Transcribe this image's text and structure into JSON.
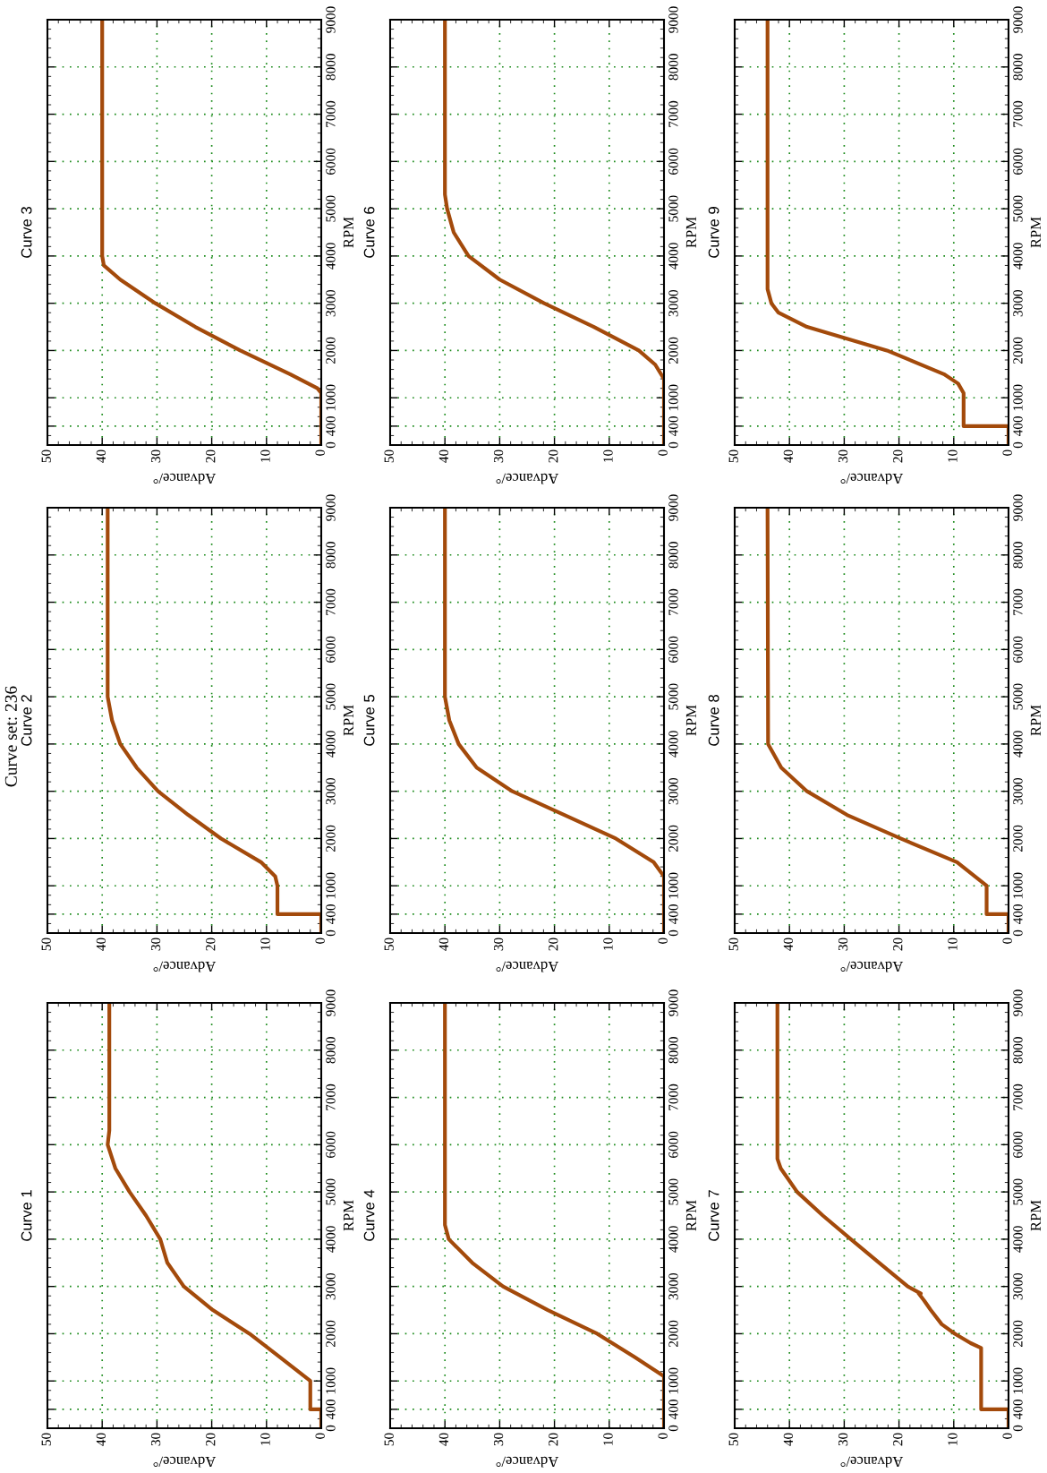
{
  "chart_data": [
    {
      "type": "line",
      "title": "Curve 1",
      "xlabel": "Advance/°",
      "ylabel": "RPM",
      "xlim": [
        50,
        0
      ],
      "ylim": [
        0,
        9000
      ],
      "xticks": [
        0,
        10,
        20,
        30,
        40,
        50
      ],
      "yticks": [
        0,
        400,
        1000,
        2000,
        3000,
        4000,
        5000,
        6000,
        7000,
        8000,
        9000
      ],
      "grid": true,
      "line_style": "solid",
      "color": "#a34a0b",
      "x": [
        0,
        0,
        2,
        2,
        7.5,
        13.1,
        19.8,
        25.1,
        28.1,
        29.4,
        32,
        35,
        37.6,
        39,
        38.7,
        38.7
      ],
      "values": [
        0,
        400,
        400,
        1000,
        1500,
        2000,
        2500,
        3000,
        3500,
        4000,
        4500,
        5000,
        5500,
        6000,
        6300,
        9000
      ]
    },
    {
      "type": "line",
      "title": "Curve 2",
      "xlabel": "Advance/°",
      "ylabel": "RPM",
      "xlim": [
        50,
        0
      ],
      "ylim": [
        0,
        9000
      ],
      "xticks": [
        0,
        10,
        20,
        30,
        40,
        50
      ],
      "yticks": [
        0,
        400,
        1000,
        2000,
        3000,
        4000,
        5000,
        6000,
        7000,
        8000,
        9000
      ],
      "grid": true,
      "line_style": "solid",
      "color": "#a34a0b",
      "annotations": [
        "Curve set: 236"
      ],
      "x": [
        0,
        0,
        8,
        8,
        8.4,
        11,
        18.3,
        24.3,
        29.8,
        33.7,
        36.7,
        38.2,
        39,
        39
      ],
      "values": [
        0,
        400,
        400,
        1000,
        1200,
        1500,
        2000,
        2500,
        3000,
        3500,
        4000,
        4500,
        5000,
        9000
      ]
    },
    {
      "type": "line",
      "title": "Curve 3",
      "xlabel": "Advance/°",
      "ylabel": "RPM",
      "xlim": [
        50,
        0
      ],
      "ylim": [
        0,
        9000
      ],
      "xticks": [
        0,
        10,
        20,
        30,
        40,
        50
      ],
      "yticks": [
        0,
        400,
        1000,
        2000,
        3000,
        4000,
        5000,
        6000,
        7000,
        8000,
        9000
      ],
      "grid": true,
      "line_style": "solid",
      "color": "#a34a0b",
      "x": [
        0,
        0,
        0.7,
        5.7,
        14.8,
        23,
        30.3,
        36.7,
        39.7,
        40,
        40
      ],
      "values": [
        0,
        1100,
        1200,
        1500,
        2000,
        2500,
        3000,
        3500,
        3800,
        4000,
        9000
      ]
    },
    {
      "type": "line",
      "title": "Curve 4",
      "xlabel": "Advance/°",
      "ylabel": "RPM",
      "xlim": [
        50,
        0
      ],
      "ylim": [
        0,
        9000
      ],
      "xticks": [
        0,
        10,
        20,
        30,
        40,
        50
      ],
      "yticks": [
        0,
        400,
        1000,
        2000,
        3000,
        4000,
        5000,
        6000,
        7000,
        8000,
        9000
      ],
      "grid": true,
      "line_style": "solid",
      "color": "#a34a0b",
      "x": [
        0,
        0,
        5.3,
        12.2,
        21.2,
        29.4,
        35,
        39.3,
        40,
        40
      ],
      "values": [
        0,
        1100,
        1500,
        2000,
        2500,
        3000,
        3500,
        4000,
        4300,
        9000
      ]
    },
    {
      "type": "line",
      "title": "Curve 5",
      "xlabel": "Advance/°",
      "ylabel": "RPM",
      "xlim": [
        50,
        0
      ],
      "ylim": [
        0,
        9000
      ],
      "xticks": [
        0,
        10,
        20,
        30,
        40,
        50
      ],
      "yticks": [
        0,
        400,
        1000,
        2000,
        3000,
        4000,
        5000,
        6000,
        7000,
        8000,
        9000
      ],
      "grid": true,
      "line_style": "solid",
      "color": "#a34a0b",
      "x": [
        0,
        0,
        1.9,
        8.8,
        18.2,
        27.7,
        34.2,
        37.5,
        39.2,
        40,
        40
      ],
      "values": [
        0,
        1200,
        1500,
        2000,
        2500,
        3000,
        3500,
        4000,
        4500,
        5000,
        9000
      ]
    },
    {
      "type": "line",
      "title": "Curve 6",
      "xlabel": "Advance/°",
      "ylabel": "RPM",
      "xlim": [
        50,
        0
      ],
      "ylim": [
        0,
        9000
      ],
      "xticks": [
        0,
        10,
        20,
        30,
        40,
        50
      ],
      "yticks": [
        0,
        400,
        1000,
        2000,
        3000,
        4000,
        5000,
        6000,
        7000,
        8000,
        9000
      ],
      "grid": true,
      "line_style": "solid",
      "color": "#a34a0b",
      "x": [
        0,
        0,
        1.6,
        4.6,
        12.8,
        21.9,
        30,
        35.7,
        38.4,
        39.6,
        40,
        40
      ],
      "values": [
        0,
        1400,
        1700,
        2000,
        2500,
        3000,
        3500,
        4000,
        4500,
        5000,
        5300,
        9000
      ]
    },
    {
      "type": "line",
      "title": "Curve 7",
      "xlabel": "Advance/°",
      "ylabel": "RPM",
      "xlim": [
        50,
        0
      ],
      "ylim": [
        0,
        9000
      ],
      "xticks": [
        0,
        10,
        20,
        30,
        40,
        50
      ],
      "yticks": [
        0,
        400,
        1000,
        2000,
        3000,
        4000,
        5000,
        6000,
        7000,
        8000,
        9000
      ],
      "grid": true,
      "line_style": "solid",
      "color": "#a34a0b",
      "x": [
        0,
        0,
        5,
        5,
        6.9,
        9.8,
        12.2,
        14.2,
        15.4,
        16.4,
        16,
        18.4,
        23.6,
        28.8,
        33.9,
        38.6,
        41.6,
        42.2,
        42.2
      ],
      "values": [
        0,
        400,
        400,
        1700,
        1800,
        2000,
        2200,
        2500,
        2700,
        2850,
        2850,
        3000,
        3500,
        4000,
        4500,
        5000,
        5500,
        5700,
        9000
      ]
    },
    {
      "type": "line",
      "title": "Curve 8",
      "xlabel": "Advance/°",
      "ylabel": "RPM",
      "xlim": [
        50,
        0
      ],
      "ylim": [
        0,
        9000
      ],
      "xticks": [
        0,
        10,
        20,
        30,
        40,
        50
      ],
      "yticks": [
        0,
        400,
        1000,
        2000,
        3000,
        4000,
        5000,
        6000,
        7000,
        8000,
        9000
      ],
      "grid": true,
      "line_style": "solid",
      "color": "#a34a0b",
      "x": [
        0,
        0,
        4,
        4,
        9.4,
        19.7,
        29.5,
        36.8,
        41.5,
        43.9,
        44
      ],
      "values": [
        0,
        400,
        400,
        1000,
        1500,
        2000,
        2500,
        3000,
        3500,
        4000,
        9000
      ]
    },
    {
      "type": "line",
      "title": "Curve 9",
      "xlabel": "Advance/°",
      "ylabel": "RPM",
      "xlim": [
        50,
        0
      ],
      "ylim": [
        0,
        9000
      ],
      "xticks": [
        0,
        10,
        20,
        30,
        40,
        50
      ],
      "yticks": [
        0,
        400,
        1000,
        2000,
        3000,
        4000,
        5000,
        6000,
        7000,
        8000,
        9000
      ],
      "grid": true,
      "line_style": "solid",
      "color": "#a34a0b",
      "x": [
        0,
        0,
        8.2,
        8.2,
        9.2,
        11.8,
        22.2,
        36.8,
        42,
        43.3,
        44,
        44
      ],
      "values": [
        0,
        400,
        400,
        1100,
        1300,
        1500,
        2000,
        2500,
        2800,
        3000,
        3300,
        9000
      ]
    }
  ]
}
